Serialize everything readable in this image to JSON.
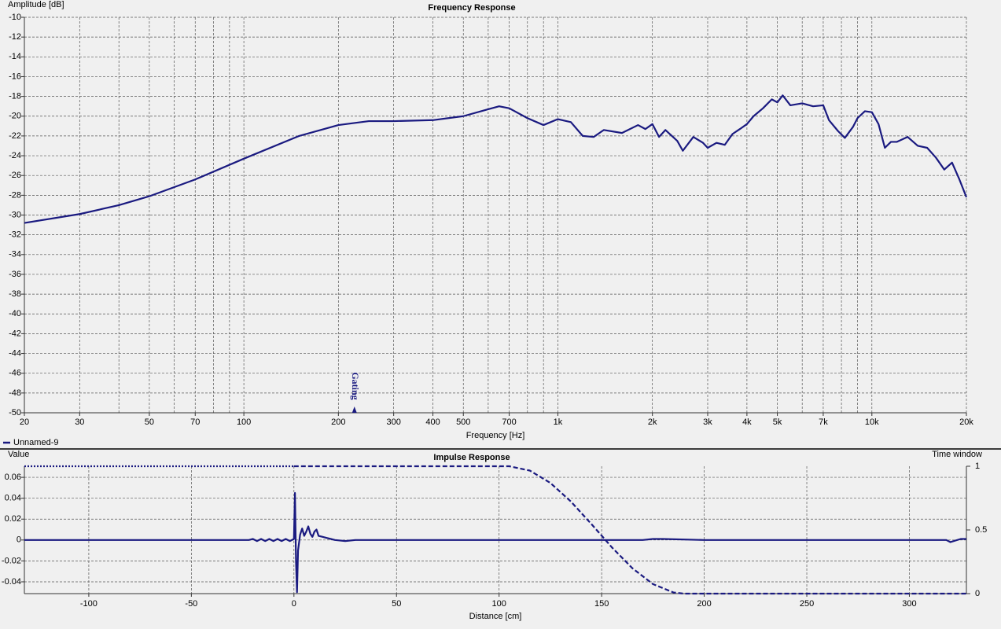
{
  "chart_data": [
    {
      "type": "line",
      "title": "Frequency Response",
      "x_label": "Frequency [Hz]",
      "y_label": "Amplitude [dB]",
      "x_scale": "log",
      "xlim": [
        20,
        20000
      ],
      "ylim": [
        -50,
        -10
      ],
      "grid": true,
      "legend": "bottom-left",
      "xticks": [
        20,
        30,
        50,
        70,
        100,
        200,
        300,
        400,
        500,
        700,
        {
          "value": 1000,
          "label": "1k"
        },
        {
          "value": 2000,
          "label": "2k"
        },
        {
          "value": 3000,
          "label": "3k"
        },
        {
          "value": 4000,
          "label": "4k"
        },
        {
          "value": 5000,
          "label": "5k"
        },
        {
          "value": 7000,
          "label": "7k"
        },
        {
          "value": 10000,
          "label": "10k"
        },
        {
          "value": 20000,
          "label": "20k"
        }
      ],
      "x_grid_lines": [
        40,
        60,
        80,
        90,
        600,
        800,
        900,
        6000,
        8000,
        9000
      ],
      "yticks": [
        -10,
        -12,
        -14,
        -16,
        -18,
        -20,
        -22,
        -24,
        -26,
        -28,
        -30,
        -32,
        -34,
        -36,
        -38,
        -40,
        -42,
        -44,
        -46,
        -48,
        -50
      ],
      "annotation": {
        "text": "Gating",
        "x": 225
      },
      "series": [
        {
          "name": "Unnamed-9",
          "color": "#1a1a80",
          "x": [
            20,
            30,
            40,
            50,
            70,
            100,
            150,
            200,
            250,
            300,
            400,
            500,
            600,
            650,
            700,
            800,
            900,
            1000,
            1100,
            1200,
            1300,
            1400,
            1600,
            1800,
            1900,
            2000,
            2100,
            2200,
            2400,
            2500,
            2700,
            2900,
            3000,
            3200,
            3400,
            3600,
            3800,
            4000,
            4200,
            4500,
            4800,
            5000,
            5200,
            5500,
            6000,
            6500,
            7000,
            7300,
            7800,
            8200,
            8700,
            9000,
            9500,
            10000,
            10500,
            11000,
            11500,
            12000,
            13000,
            14000,
            15000,
            16000,
            17000,
            18000,
            19000,
            20000
          ],
          "values": [
            -30.8,
            -29.9,
            -29.0,
            -28.1,
            -26.4,
            -24.3,
            -22.0,
            -20.9,
            -20.5,
            -20.5,
            -20.4,
            -20.0,
            -19.3,
            -19.0,
            -19.2,
            -20.2,
            -20.9,
            -20.3,
            -20.6,
            -22.0,
            -22.1,
            -21.4,
            -21.7,
            -20.9,
            -21.3,
            -20.8,
            -22.1,
            -21.4,
            -22.5,
            -23.5,
            -22.1,
            -22.7,
            -23.2,
            -22.7,
            -22.9,
            -21.8,
            -21.3,
            -20.8,
            -20.0,
            -19.2,
            -18.3,
            -18.6,
            -17.9,
            -18.9,
            -18.7,
            -19.0,
            -18.9,
            -20.4,
            -21.5,
            -22.2,
            -21.1,
            -20.2,
            -19.5,
            -19.6,
            -20.8,
            -23.2,
            -22.6,
            -22.6,
            -22.1,
            -23.0,
            -23.2,
            -24.2,
            -25.4,
            -24.7,
            -26.4,
            -28.2
          ]
        }
      ]
    },
    {
      "type": "line",
      "title": "Impulse Response",
      "x_label": "Distance [cm]",
      "y_label": "Value",
      "y2_label": "Time window",
      "x_scale": "linear",
      "xlim": [
        -131.4,
        327.8
      ],
      "ylim": [
        -0.0513,
        0.0706
      ],
      "y2lim": [
        0,
        1
      ],
      "grid": true,
      "xticks": [
        -100,
        -50,
        0,
        50,
        100,
        150,
        200,
        250,
        300
      ],
      "yticks": [
        -0.04,
        -0.02,
        0,
        0.02,
        0.04,
        0.06
      ],
      "y2ticks": [
        0,
        0.5,
        1
      ],
      "series": [
        {
          "color": "#1a1a80",
          "line_style": "solid",
          "x": [
            -131.4,
            -22,
            -20,
            -18,
            -16,
            -14,
            -12,
            -10,
            -8,
            -6,
            -4,
            -2,
            0,
            0.5,
            1,
            1.5,
            2,
            3,
            4,
            5,
            6,
            7,
            8,
            9,
            10,
            11,
            12,
            14,
            16,
            18,
            20,
            25,
            30,
            170,
            175,
            180,
            200,
            318,
            320,
            325,
            327.8
          ],
          "values": [
            0,
            0,
            0.001,
            -0.001,
            0.001,
            -0.001,
            0.001,
            -0.001,
            0.001,
            -0.001,
            0.001,
            -0.001,
            0.001,
            0.045,
            -0.02,
            -0.05,
            -0.01,
            0.005,
            0.011,
            0.004,
            0.008,
            0.013,
            0.006,
            0.003,
            0.008,
            0.01,
            0.004,
            0.003,
            0.002,
            0.001,
            0,
            -0.001,
            0,
            0,
            0.001,
            0.001,
            0,
            0,
            -0.002,
            0.001,
            0.001
          ]
        },
        {
          "color": "#1a1a80",
          "line_style": "dotted",
          "axis": "y2",
          "x": [
            -131.4,
            0
          ],
          "values": [
            1,
            1
          ]
        },
        {
          "color": "#1a1a80",
          "line_style": "dashed",
          "axis": "y2",
          "x": [
            0,
            105,
            115,
            125,
            135,
            145,
            150,
            155,
            165,
            175,
            185,
            190,
            327.8
          ],
          "values": [
            1,
            1,
            0.966,
            0.869,
            0.723,
            0.546,
            0.455,
            0.363,
            0.199,
            0.075,
            0.009,
            0,
            0
          ]
        }
      ]
    }
  ]
}
